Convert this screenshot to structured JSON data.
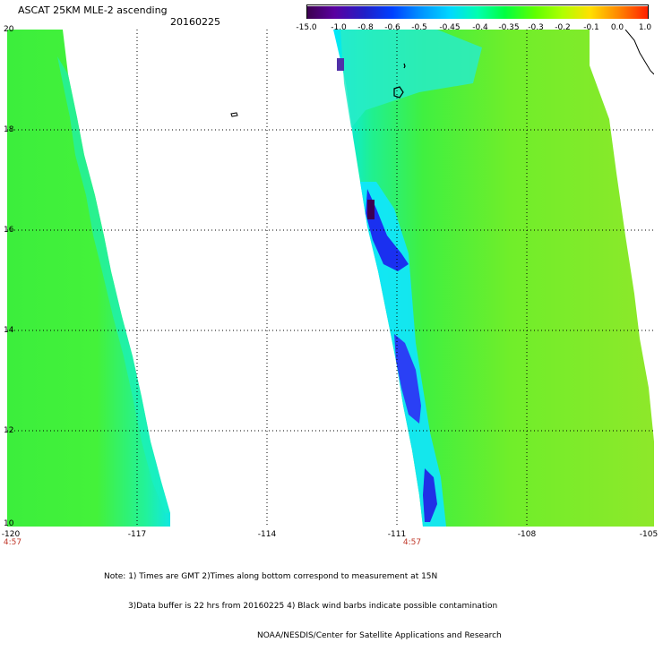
{
  "header": {
    "title": "ASCAT 25KM MLE-2 ascending",
    "date": "20160225"
  },
  "colorbar": {
    "labels": [
      "-15.0",
      "-1.0",
      "-0.8",
      "-0.6",
      "-0.5",
      "-0.45",
      "-0.4",
      "-0.35",
      "-0.3",
      "-0.2",
      "-0.1",
      "0.0",
      "1.0"
    ],
    "colors": [
      "#3c0050",
      "#5a00a0",
      "#2020c8",
      "#0040ff",
      "#0090ff",
      "#00d8ff",
      "#00ffb0",
      "#00ff40",
      "#60ff00",
      "#b0ff00",
      "#ffe000",
      "#ff8000",
      "#ff2000"
    ]
  },
  "map": {
    "lat_labels": [
      "20",
      "18",
      "16",
      "14",
      "12",
      "10"
    ],
    "lon_labels": [
      "-120",
      "-117",
      "-114",
      "-111",
      "-108",
      "-105"
    ],
    "time_labels": [
      "4:57",
      "4:57"
    ]
  },
  "notes": {
    "line1": "Note: 1) Times are GMT 2)Times along bottom correspond to measurement at 15N",
    "line2": "3)Data buffer is 22 hrs from 20160225 4) Black wind barbs indicate possible contamination",
    "line3": "NOAA/NESDIS/Center for Satellite Applications and Research"
  }
}
